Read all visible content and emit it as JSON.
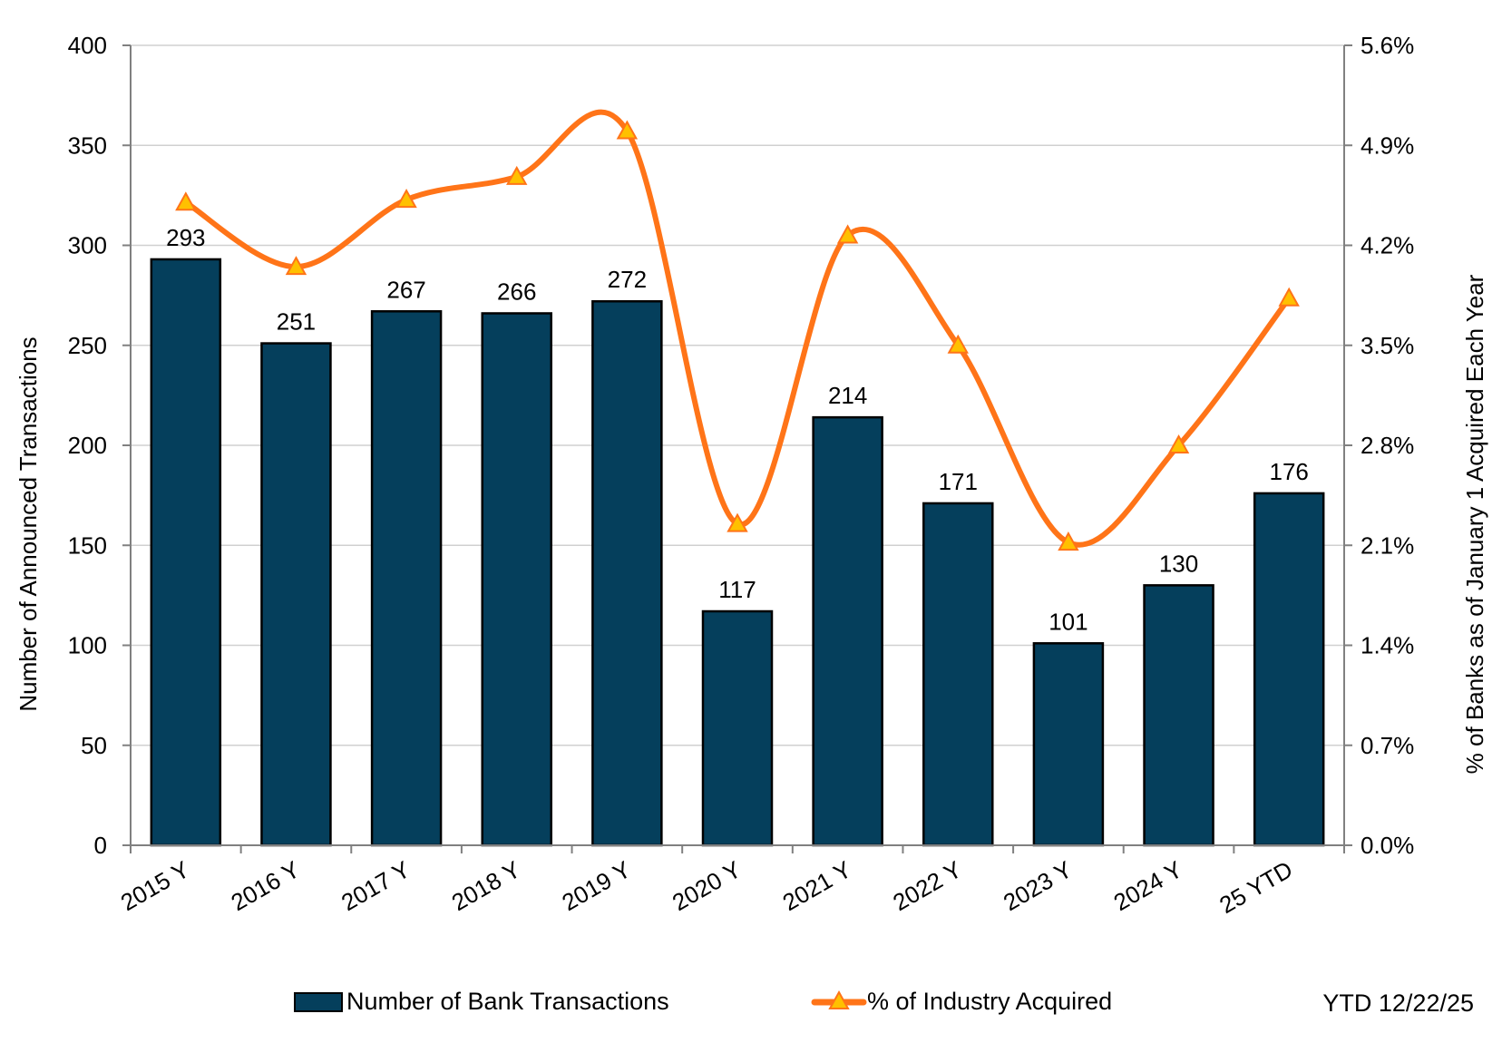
{
  "chart_data": {
    "type": "bar",
    "categories": [
      "2015 Y",
      "2016 Y",
      "2017 Y",
      "2018 Y",
      "2019 Y",
      "2020 Y",
      "2021 Y",
      "2022 Y",
      "2023 Y",
      "2024 Y",
      "25 YTD"
    ],
    "series": [
      {
        "name": "Number of Bank Transactions",
        "type": "bar",
        "axis": "left",
        "color": "#053f5c",
        "values": [
          293,
          251,
          267,
          266,
          272,
          117,
          214,
          171,
          101,
          130,
          176
        ]
      },
      {
        "name": "% of Industry Acquired",
        "type": "line",
        "axis": "right",
        "color": "#ff7418",
        "marker": "triangle",
        "marker_color": "#ffc000",
        "smooth": true,
        "values": [
          4.5,
          4.05,
          4.52,
          4.68,
          5.0,
          2.25,
          4.27,
          3.5,
          2.12,
          2.8,
          3.83
        ]
      }
    ],
    "ylabel": "Number of Announced Transactions",
    "y2label": "% of Banks as of January 1 Acquired Each Year",
    "ylim": [
      0,
      400
    ],
    "yticks": [
      "0",
      "50",
      "100",
      "150",
      "200",
      "250",
      "300",
      "350",
      "400"
    ],
    "y2lim": [
      0,
      5.6
    ],
    "y2ticks": [
      "0.0%",
      "0.7%",
      "1.4%",
      "2.1%",
      "2.8%",
      "3.5%",
      "4.2%",
      "4.9%",
      "5.6%"
    ],
    "grid": true,
    "legend_position": "bottom",
    "annotation": "YTD 12/22/25"
  }
}
